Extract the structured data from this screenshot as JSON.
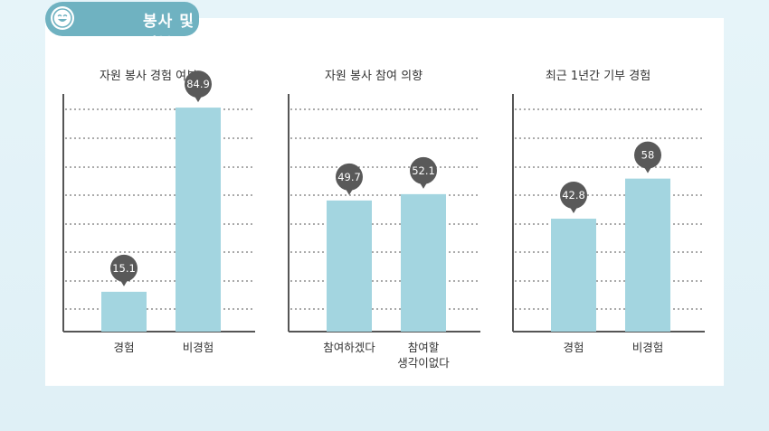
{
  "section": {
    "title": "봉사 및 기부",
    "icon": "smiley-face-icon",
    "accent_color": "#6fb2c1"
  },
  "chart_data": [
    {
      "type": "bar",
      "title": "자원 봉사 경험 여부",
      "categories": [
        "경험",
        "비경험"
      ],
      "values": [
        15.1,
        84.9
      ],
      "value_labels": [
        "15.1",
        "84.9"
      ],
      "ylim": [
        0,
        100
      ],
      "grid": true,
      "bar_color": "#a3d5e0"
    },
    {
      "type": "bar",
      "title": "자원 봉사 참여 의향",
      "categories": [
        "참여하겠다",
        "참여할\n생각이없다"
      ],
      "values": [
        49.7,
        52.1
      ],
      "value_labels": [
        "49.7",
        "52.1"
      ],
      "ylim": [
        0,
        100
      ],
      "grid": true,
      "bar_color": "#a3d5e0"
    },
    {
      "type": "bar",
      "title": "최근 1년간 기부 경험",
      "categories": [
        "경험",
        "비경험"
      ],
      "values": [
        42.8,
        58
      ],
      "value_labels": [
        "42.8",
        "58"
      ],
      "ylim": [
        0,
        100
      ],
      "grid": true,
      "bar_color": "#a3d5e0"
    }
  ]
}
